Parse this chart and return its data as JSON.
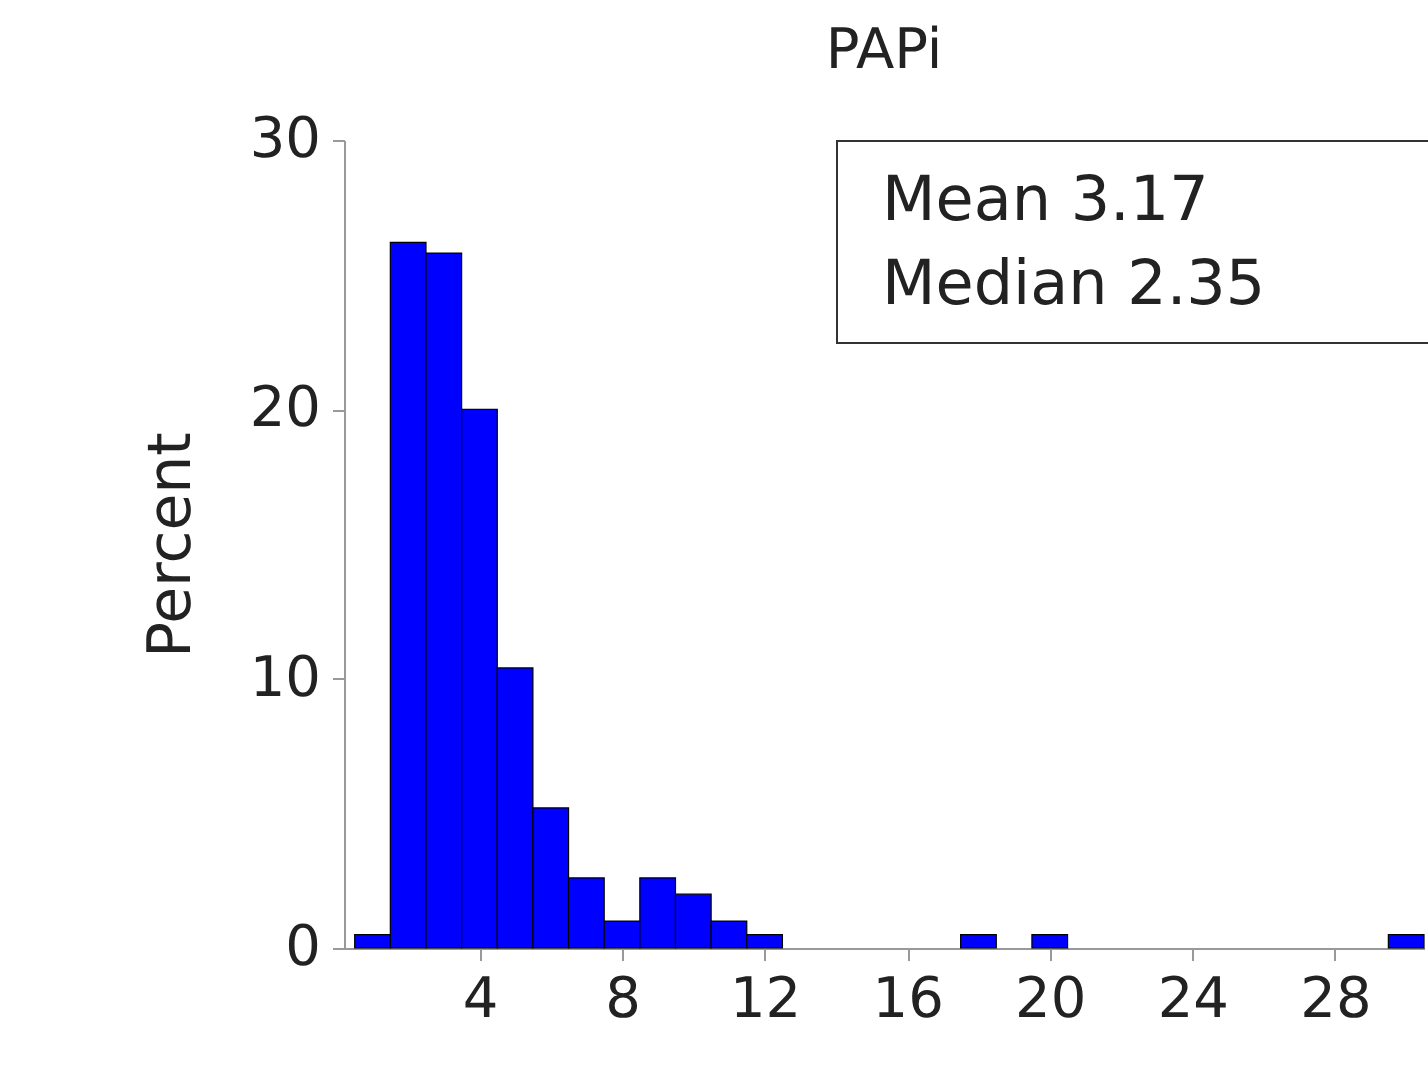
{
  "chart_data": {
    "type": "histogram",
    "title": "PAPi",
    "ylabel": "Percent",
    "bins": [
      0.5,
      1.5,
      2.5,
      3.5,
      4.5,
      5.5,
      6.5,
      7.5,
      8.5,
      9.5,
      10.5,
      11.5,
      12.5,
      13.5,
      14.5,
      15.5,
      16.5,
      17.5,
      18.5,
      19.5,
      20.5,
      21.5,
      22.5,
      23.5,
      24.5,
      25.5,
      26.5,
      27.5,
      28.5,
      29.5,
      30.5
    ],
    "values": [
      0.5,
      26.2,
      25.8,
      20,
      10.4,
      5.2,
      2.6,
      1,
      2.6,
      2,
      1,
      0.5,
      0,
      0,
      0,
      0,
      0,
      0.5,
      0,
      0.5,
      0,
      0,
      0,
      0,
      0,
      0,
      0,
      0,
      0,
      0.5
    ],
    "color": "#0000ff",
    "xlim": [
      0.2,
      30.5
    ],
    "xticks": [
      4,
      8,
      12,
      16,
      20,
      24,
      28
    ],
    "ylim": [
      0,
      30
    ],
    "yticks": [
      0,
      10,
      20,
      30
    ],
    "annotations": [
      "Mean 3.17",
      "Median 2.35"
    ]
  }
}
